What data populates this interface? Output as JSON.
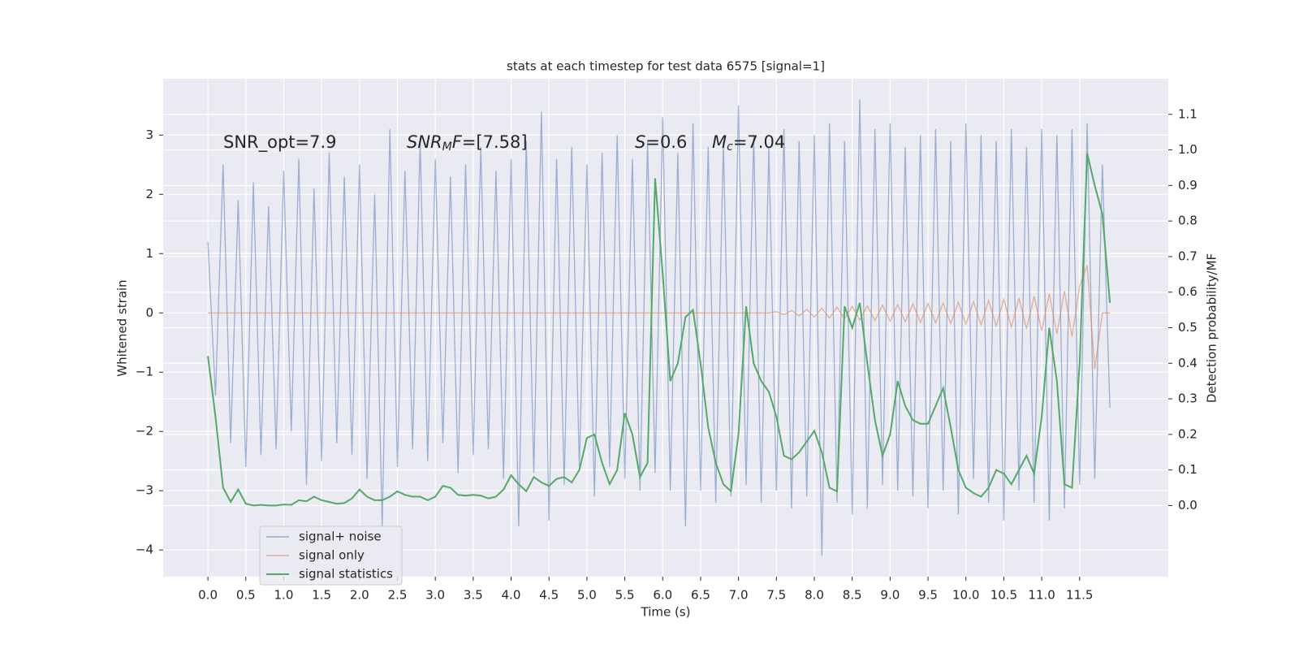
{
  "chart_data": {
    "type": "line",
    "title": "stats at each timestep for test data 6575 [signal=1]",
    "xlabel": "Time (s)",
    "ylabel": "Whitened strain",
    "y2label": "Detection probability/MF",
    "grid": true,
    "legend": "lower left",
    "xlim": [
      -0.59,
      12.67
    ],
    "ylim": [
      -4.45,
      3.95
    ],
    "y2lim": [
      -0.2,
      1.2
    ],
    "xticks": [
      {
        "value": 0,
        "label": "0.0"
      },
      {
        "value": 0.5,
        "label": "0.5"
      },
      {
        "value": 1,
        "label": "1.0"
      },
      {
        "value": 1.5,
        "label": "1.5"
      },
      {
        "value": 2,
        "label": "2.0"
      },
      {
        "value": 2.5,
        "label": "2.5"
      },
      {
        "value": 3,
        "label": "3.0"
      },
      {
        "value": 3.5,
        "label": "3.5"
      },
      {
        "value": 4,
        "label": "4.0"
      },
      {
        "value": 4.5,
        "label": "4.5"
      },
      {
        "value": 5,
        "label": "5.0"
      },
      {
        "value": 5.5,
        "label": "5.5"
      },
      {
        "value": 6,
        "label": "6.0"
      },
      {
        "value": 6.5,
        "label": "6.5"
      },
      {
        "value": 7,
        "label": "7.0"
      },
      {
        "value": 7.5,
        "label": "7.5"
      },
      {
        "value": 8,
        "label": "8.0"
      },
      {
        "value": 8.5,
        "label": "8.5"
      },
      {
        "value": 9,
        "label": "9.0"
      },
      {
        "value": 9.5,
        "label": "9.5"
      },
      {
        "value": 10,
        "label": "10.0"
      },
      {
        "value": 10.5,
        "label": "10.5"
      },
      {
        "value": 11,
        "label": "11.0"
      },
      {
        "value": 11.5,
        "label": "11.5"
      }
    ],
    "yticks": [
      {
        "value": -4,
        "label": "−4"
      },
      {
        "value": -3,
        "label": "−3"
      },
      {
        "value": -2,
        "label": "−2"
      },
      {
        "value": -1,
        "label": "−1"
      },
      0,
      1,
      2,
      3
    ],
    "y2ticks": [
      {
        "value": 0,
        "label": "0.0"
      },
      {
        "value": 0.1,
        "label": "0.1"
      },
      {
        "value": 0.2,
        "label": "0.2"
      },
      {
        "value": 0.3,
        "label": "0.3"
      },
      {
        "value": 0.4,
        "label": "0.4"
      },
      {
        "value": 0.5,
        "label": "0.5"
      },
      {
        "value": 0.6,
        "label": "0.6"
      },
      {
        "value": 0.7,
        "label": "0.7"
      },
      {
        "value": 0.8,
        "label": "0.8"
      },
      {
        "value": 0.9,
        "label": "0.9"
      },
      {
        "value": 1,
        "label": "1.0"
      },
      {
        "value": 1.1,
        "label": "1.1"
      }
    ],
    "annotations": [
      {
        "parts": [
          {
            "text": "SNR_opt=7.9",
            "style": "normal"
          }
        ]
      },
      {
        "parts": [
          {
            "text": "SNR",
            "style": "italic"
          },
          {
            "text": "M",
            "style": "italic-sub"
          },
          {
            "text": "F",
            "style": "italic"
          },
          {
            "text": "=[7.58]",
            "style": "normal"
          }
        ]
      },
      {
        "parts": [
          {
            "text": "S",
            "style": "italic"
          },
          {
            "text": "=0.6",
            "style": "normal"
          }
        ]
      },
      {
        "parts": [
          {
            "text": "M",
            "style": "italic"
          },
          {
            "text": "c",
            "style": "italic-sub"
          },
          {
            "text": "=7.04",
            "style": "normal"
          }
        ]
      }
    ],
    "x": [
      0,
      0.1,
      0.2,
      0.3,
      0.4,
      0.5,
      0.6,
      0.7,
      0.8,
      0.9,
      1,
      1.1,
      1.2,
      1.3,
      1.4,
      1.5,
      1.6,
      1.7,
      1.8,
      1.9,
      2,
      2.1,
      2.2,
      2.3,
      2.4,
      2.5,
      2.6,
      2.7,
      2.8,
      2.9,
      3,
      3.1,
      3.2,
      3.3,
      3.4,
      3.5,
      3.6,
      3.7,
      3.8,
      3.9,
      4,
      4.1,
      4.2,
      4.3,
      4.4,
      4.5,
      4.6,
      4.7,
      4.8,
      4.9,
      5,
      5.1,
      5.2,
      5.3,
      5.4,
      5.5,
      5.6,
      5.7,
      5.8,
      5.9,
      6,
      6.1,
      6.2,
      6.3,
      6.4,
      6.5,
      6.6,
      6.7,
      6.8,
      6.9,
      7,
      7.1,
      7.2,
      7.3,
      7.4,
      7.5,
      7.6,
      7.7,
      7.8,
      7.9,
      8,
      8.1,
      8.2,
      8.3,
      8.4,
      8.5,
      8.6,
      8.7,
      8.8,
      8.9,
      9,
      9.1,
      9.2,
      9.3,
      9.4,
      9.5,
      9.6,
      9.7,
      9.8,
      9.9,
      10,
      10.1,
      10.2,
      10.3,
      10.4,
      10.5,
      10.6,
      10.7,
      10.8,
      10.9,
      11,
      11.1,
      11.2,
      11.3,
      11.4,
      11.5,
      11.6,
      11.7,
      11.8,
      11.9
    ],
    "series": [
      {
        "name": "signal+ noise",
        "color": "#4c72b0",
        "alpha": 0.5,
        "axis": "y",
        "values": [
          1.2,
          -1.4,
          2.5,
          -2.2,
          1.9,
          -2.6,
          2.2,
          -2.4,
          1.8,
          -2.3,
          2.4,
          -2.0,
          2.6,
          -2.9,
          2.1,
          -2.5,
          2.7,
          -2.2,
          2.3,
          -2.4,
          2.5,
          -2.8,
          2.0,
          -3.6,
          3.1,
          -2.6,
          2.4,
          -2.3,
          2.9,
          -2.5,
          2.6,
          -2.2,
          2.3,
          -2.7,
          2.5,
          -2.4,
          2.8,
          -2.3,
          2.4,
          -2.8,
          2.6,
          -3.6,
          2.9,
          -2.7,
          3.4,
          -3.5,
          2.6,
          -2.9,
          2.8,
          -2.6,
          2.5,
          -3.1,
          2.7,
          -2.6,
          3.0,
          -2.8,
          2.6,
          -3.0,
          2.9,
          -2.7,
          3.3,
          -3.0,
          2.7,
          -3.6,
          3.2,
          -3.0,
          2.8,
          -3.2,
          2.9,
          -3.1,
          3.5,
          -2.9,
          3.0,
          -3.2,
          2.8,
          -3.0,
          3.1,
          -3.3,
          2.9,
          -3.1,
          3.0,
          -4.1,
          3.2,
          -3.2,
          2.9,
          -3.4,
          3.6,
          -3.3,
          3.1,
          -2.9,
          3.2,
          -3.0,
          2.8,
          -3.1,
          3.0,
          -3.3,
          3.1,
          -3.0,
          2.9,
          -3.4,
          3.2,
          -2.8,
          3.0,
          -3.2,
          2.9,
          -3.5,
          3.1,
          -3.0,
          2.8,
          -3.2,
          3.1,
          -3.5,
          3.0,
          -3.3,
          3.1,
          -2.9,
          3.2,
          -2.8,
          2.5,
          -1.6
        ]
      },
      {
        "name": "signal only",
        "color": "#dd8452",
        "alpha": 0.6,
        "axis": "y",
        "values": [
          0,
          0,
          0,
          0,
          0,
          0,
          0,
          0,
          0,
          0,
          0,
          0,
          0,
          0,
          0,
          0,
          0,
          0,
          0,
          0,
          0,
          0,
          0,
          0,
          0,
          0,
          0,
          0,
          0,
          0,
          0,
          0,
          0,
          0,
          0,
          0,
          0,
          0,
          0,
          0,
          0,
          0,
          0,
          0,
          0,
          0,
          0,
          0,
          0,
          0,
          0,
          0,
          0,
          0,
          0,
          0,
          0,
          0,
          0,
          0,
          0,
          0,
          0,
          0,
          0,
          0,
          0,
          0,
          0,
          0,
          0,
          0,
          0,
          0,
          0,
          0.02,
          -0.03,
          0.04,
          -0.05,
          0.06,
          -0.07,
          0.08,
          -0.09,
          0.1,
          -0.1,
          0.11,
          -0.12,
          0.12,
          -0.13,
          0.13,
          -0.14,
          0.14,
          -0.15,
          0.15,
          -0.16,
          0.16,
          -0.17,
          0.17,
          -0.18,
          0.18,
          -0.19,
          0.19,
          -0.2,
          0.21,
          -0.22,
          0.23,
          -0.24,
          0.25,
          -0.27,
          0.28,
          -0.3,
          0.32,
          -0.35,
          0.37,
          -0.4,
          0.45,
          0.8,
          -0.95,
          0,
          0
        ]
      },
      {
        "name": "signal statistics",
        "color": "#55a868",
        "alpha": 1,
        "axis": "y2",
        "values": [
          0.42,
          0.25,
          0.05,
          0.01,
          0.045,
          0.005,
          0.0,
          0.002,
          0.0,
          0.0,
          0.003,
          0.002,
          0.015,
          0.012,
          0.025,
          0.015,
          0.01,
          0.005,
          0.007,
          0.02,
          0.045,
          0.025,
          0.015,
          0.015,
          0.025,
          0.04,
          0.03,
          0.025,
          0.025,
          0.015,
          0.025,
          0.055,
          0.05,
          0.03,
          0.028,
          0.03,
          0.028,
          0.02,
          0.025,
          0.045,
          0.085,
          0.06,
          0.04,
          0.08,
          0.065,
          0.055,
          0.075,
          0.08,
          0.065,
          0.1,
          0.19,
          0.2,
          0.12,
          0.06,
          0.1,
          0.26,
          0.2,
          0.08,
          0.12,
          0.92,
          0.65,
          0.35,
          0.4,
          0.53,
          0.55,
          0.4,
          0.22,
          0.12,
          0.06,
          0.04,
          0.2,
          0.56,
          0.4,
          0.35,
          0.32,
          0.25,
          0.14,
          0.13,
          0.15,
          0.18,
          0.21,
          0.15,
          0.05,
          0.04,
          0.56,
          0.5,
          0.57,
          0.4,
          0.24,
          0.14,
          0.2,
          0.35,
          0.28,
          0.24,
          0.23,
          0.23,
          0.28,
          0.33,
          0.22,
          0.1,
          0.05,
          0.035,
          0.025,
          0.05,
          0.1,
          0.09,
          0.06,
          0.1,
          0.14,
          0.09,
          0.25,
          0.5,
          0.35,
          0.06,
          0.05,
          0.4,
          0.99,
          0.9,
          0.82,
          0.57
        ]
      }
    ]
  }
}
